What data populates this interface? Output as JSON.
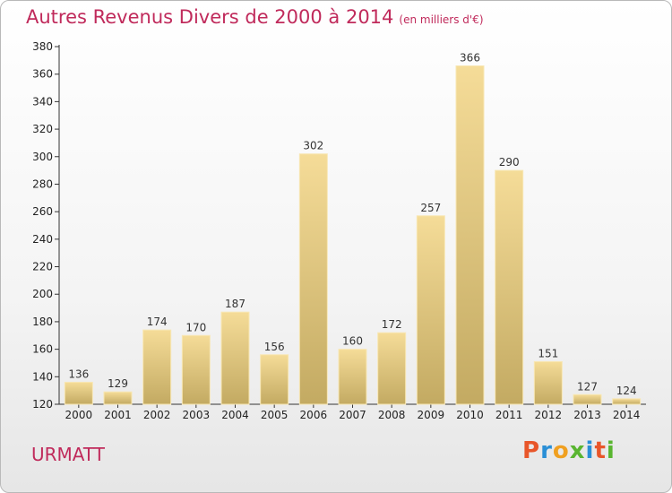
{
  "title": "Autres Revenus Divers de 2000 à 2014",
  "subtitle": "(en milliers d'€)",
  "location": "URMATT",
  "logo_text": "Proxiti",
  "colors": {
    "title": "#c02a5b",
    "bar_top": "#f5dc98",
    "bar_bottom": "#c3aa62",
    "logo": [
      "#e8562a",
      "#2a8fd6",
      "#f0a020",
      "#59b530",
      "#2a8fd6",
      "#e8562a",
      "#59b530"
    ]
  },
  "chart_data": {
    "type": "bar",
    "categories": [
      "2000",
      "2001",
      "2002",
      "2003",
      "2004",
      "2005",
      "2006",
      "2007",
      "2008",
      "2009",
      "2010",
      "2011",
      "2012",
      "2013",
      "2014"
    ],
    "values": [
      136,
      129,
      174,
      170,
      187,
      156,
      302,
      160,
      172,
      257,
      366,
      290,
      151,
      127,
      124
    ],
    "title": "Autres Revenus Divers de 2000 à 2014",
    "ylim": [
      120,
      380
    ],
    "yticks": [
      120,
      140,
      160,
      180,
      200,
      220,
      240,
      260,
      280,
      300,
      320,
      340,
      360,
      380
    ],
    "grid": false,
    "legend": "none"
  }
}
